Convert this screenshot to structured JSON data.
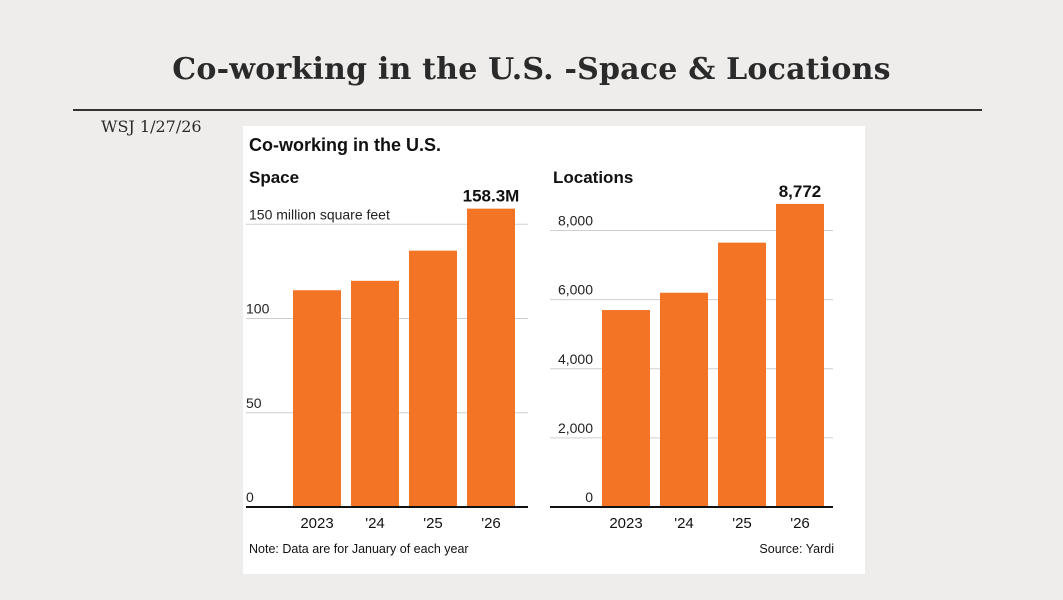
{
  "slide": {
    "title": "Co-working in the U.S. -Space & Locations",
    "source": "WSJ  1/27/26"
  },
  "figure": {
    "heading": "Co-working in the U.S.",
    "note": "Note: Data are for January of each year",
    "source": "Source: Yardi"
  },
  "colors": {
    "bar": "#f27424",
    "grid": "#cfcfcf",
    "axis": "#111111"
  },
  "chart_data": [
    {
      "type": "bar",
      "title": "Space",
      "ylabel": "",
      "unit_note": "150 million square feet",
      "categories": [
        "2023",
        "'24",
        "'25",
        "'26"
      ],
      "values": [
        115,
        120,
        136,
        158.3
      ],
      "value_labels": [
        "",
        "",
        "",
        "158.3M"
      ],
      "ylim": [
        0,
        165
      ],
      "yticks": [
        0,
        50,
        100,
        150
      ],
      "ytick_labels": [
        "0",
        "50",
        "100",
        ""
      ],
      "grid": true
    },
    {
      "type": "bar",
      "title": "Locations",
      "ylabel": "",
      "unit_note": "",
      "categories": [
        "2023",
        "'24",
        "'25",
        "'26"
      ],
      "values": [
        5700,
        6200,
        7650,
        8772
      ],
      "value_labels": [
        "",
        "",
        "",
        "8,772"
      ],
      "ylim": [
        0,
        9000
      ],
      "yticks": [
        0,
        2000,
        4000,
        6000,
        8000
      ],
      "ytick_labels": [
        "0",
        "2,000",
        "4,000",
        "6,000",
        "8,000"
      ],
      "grid": true
    }
  ]
}
